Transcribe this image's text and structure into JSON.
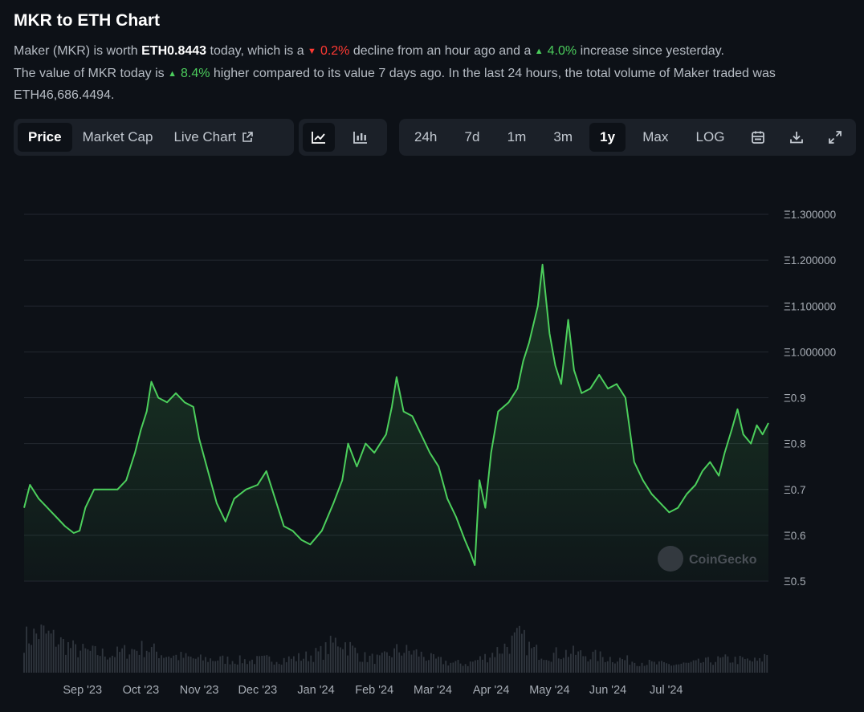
{
  "header": {
    "title": "MKR to ETH Chart",
    "line1_a": "Maker (MKR) is worth ",
    "price": "ETH0.8443",
    "line1_b": " today, which is a ",
    "hour_change": "0.2%",
    "line1_c": " decline from an hour ago and a ",
    "day_change": "4.0%",
    "line1_d": " increase since yesterday.",
    "line2_a": "The value of MKR today is ",
    "week_change": "8.4%",
    "line2_b": " higher compared to its value 7 days ago. In the last 24 hours, the total volume of Maker traded was ETH46,686.4494."
  },
  "toolbar": {
    "view_tabs": {
      "price": "Price",
      "market_cap": "Market Cap",
      "live_chart": "Live Chart"
    },
    "chart_types": [
      "line-chart-icon",
      "candlestick-chart-icon"
    ],
    "ranges": {
      "h24": "24h",
      "d7": "7d",
      "m1": "1m",
      "m3": "3m",
      "y1": "1y",
      "max": "Max",
      "log": "LOG"
    },
    "active_view": "Price",
    "active_chart_type": "line",
    "active_range": "1y",
    "tools": [
      "calendar-icon",
      "download-icon",
      "expand-icon"
    ]
  },
  "chart_data": {
    "type": "area",
    "title": "",
    "xlabel": "",
    "ylabel": "",
    "x_labels": [
      "Sep '23",
      "Oct '23",
      "Nov '23",
      "Dec '23",
      "Jan '24",
      "Feb '24",
      "Mar '24",
      "Apr '24",
      "May '24",
      "Jun '24",
      "Jul '24"
    ],
    "x_label_months": [
      1,
      2,
      3,
      4,
      5,
      6,
      7,
      8,
      9,
      10,
      11
    ],
    "y_ticks": [
      {
        "value": 0.5,
        "label": "Ξ0.5"
      },
      {
        "value": 0.6,
        "label": "Ξ0.6"
      },
      {
        "value": 0.7,
        "label": "Ξ0.7"
      },
      {
        "value": 0.8,
        "label": "Ξ0.8"
      },
      {
        "value": 0.9,
        "label": "Ξ0.9"
      },
      {
        "value": 1.0,
        "label": "Ξ1.000000"
      },
      {
        "value": 1.1,
        "label": "Ξ1.100000"
      },
      {
        "value": 1.2,
        "label": "Ξ1.200000"
      },
      {
        "value": 1.3,
        "label": "Ξ1.300000"
      }
    ],
    "ylim": [
      0.5,
      1.3
    ],
    "grid": true,
    "line_color": "#4ccf5c",
    "watermark": "CoinGecko",
    "price_series": {
      "name": "MKR/ETH",
      "points": [
        [
          0.0,
          0.66
        ],
        [
          0.1,
          0.71
        ],
        [
          0.25,
          0.68
        ],
        [
          0.4,
          0.66
        ],
        [
          0.55,
          0.64
        ],
        [
          0.7,
          0.62
        ],
        [
          0.85,
          0.605
        ],
        [
          0.95,
          0.61
        ],
        [
          1.05,
          0.66
        ],
        [
          1.2,
          0.7
        ],
        [
          1.4,
          0.7
        ],
        [
          1.6,
          0.7
        ],
        [
          1.75,
          0.72
        ],
        [
          1.9,
          0.78
        ],
        [
          2.0,
          0.83
        ],
        [
          2.1,
          0.87
        ],
        [
          2.18,
          0.935
        ],
        [
          2.3,
          0.9
        ],
        [
          2.45,
          0.89
        ],
        [
          2.6,
          0.91
        ],
        [
          2.75,
          0.89
        ],
        [
          2.9,
          0.88
        ],
        [
          3.0,
          0.81
        ],
        [
          3.15,
          0.74
        ],
        [
          3.3,
          0.67
        ],
        [
          3.45,
          0.63
        ],
        [
          3.6,
          0.68
        ],
        [
          3.8,
          0.7
        ],
        [
          4.0,
          0.71
        ],
        [
          4.15,
          0.74
        ],
        [
          4.3,
          0.68
        ],
        [
          4.45,
          0.62
        ],
        [
          4.6,
          0.61
        ],
        [
          4.75,
          0.59
        ],
        [
          4.9,
          0.58
        ],
        [
          5.1,
          0.61
        ],
        [
          5.3,
          0.67
        ],
        [
          5.45,
          0.72
        ],
        [
          5.55,
          0.8
        ],
        [
          5.7,
          0.75
        ],
        [
          5.85,
          0.8
        ],
        [
          6.0,
          0.78
        ],
        [
          6.1,
          0.8
        ],
        [
          6.2,
          0.82
        ],
        [
          6.3,
          0.88
        ],
        [
          6.38,
          0.945
        ],
        [
          6.5,
          0.87
        ],
        [
          6.65,
          0.86
        ],
        [
          6.8,
          0.82
        ],
        [
          6.95,
          0.78
        ],
        [
          7.1,
          0.75
        ],
        [
          7.25,
          0.68
        ],
        [
          7.4,
          0.64
        ],
        [
          7.55,
          0.59
        ],
        [
          7.65,
          0.56
        ],
        [
          7.72,
          0.535
        ],
        [
          7.8,
          0.72
        ],
        [
          7.9,
          0.66
        ],
        [
          8.0,
          0.78
        ],
        [
          8.12,
          0.87
        ],
        [
          8.3,
          0.89
        ],
        [
          8.45,
          0.92
        ],
        [
          8.55,
          0.98
        ],
        [
          8.65,
          1.02
        ],
        [
          8.8,
          1.1
        ],
        [
          8.88,
          1.19
        ],
        [
          9.0,
          1.04
        ],
        [
          9.1,
          0.97
        ],
        [
          9.2,
          0.93
        ],
        [
          9.32,
          1.07
        ],
        [
          9.42,
          0.96
        ],
        [
          9.55,
          0.91
        ],
        [
          9.7,
          0.92
        ],
        [
          9.85,
          0.95
        ],
        [
          10.0,
          0.92
        ],
        [
          10.15,
          0.93
        ],
        [
          10.3,
          0.9
        ],
        [
          10.45,
          0.76
        ],
        [
          10.6,
          0.72
        ],
        [
          10.75,
          0.69
        ],
        [
          10.9,
          0.67
        ],
        [
          11.05,
          0.65
        ],
        [
          11.2,
          0.66
        ],
        [
          11.35,
          0.69
        ],
        [
          11.5,
          0.71
        ],
        [
          11.62,
          0.74
        ],
        [
          11.75,
          0.76
        ],
        [
          11.9,
          0.73
        ],
        [
          12.0,
          0.78
        ],
        [
          12.12,
          0.83
        ],
        [
          12.22,
          0.875
        ],
        [
          12.32,
          0.82
        ],
        [
          12.45,
          0.8
        ],
        [
          12.55,
          0.84
        ],
        [
          12.65,
          0.82
        ],
        [
          12.75,
          0.845
        ]
      ]
    },
    "volume_series": {
      "name": "Volume",
      "points": [
        [
          0.0,
          0.75
        ],
        [
          0.3,
          0.9
        ],
        [
          0.6,
          0.7
        ],
        [
          0.9,
          0.5
        ],
        [
          1.2,
          0.45
        ],
        [
          1.5,
          0.4
        ],
        [
          1.8,
          0.5
        ],
        [
          2.1,
          0.55
        ],
        [
          2.4,
          0.4
        ],
        [
          2.7,
          0.35
        ],
        [
          3.0,
          0.3
        ],
        [
          3.3,
          0.3
        ],
        [
          3.6,
          0.28
        ],
        [
          3.9,
          0.27
        ],
        [
          4.2,
          0.3
        ],
        [
          4.5,
          0.3
        ],
        [
          4.8,
          0.35
        ],
        [
          5.1,
          0.45
        ],
        [
          5.4,
          0.75
        ],
        [
          5.6,
          0.55
        ],
        [
          5.8,
          0.35
        ],
        [
          6.1,
          0.3
        ],
        [
          6.4,
          0.5
        ],
        [
          6.7,
          0.45
        ],
        [
          7.0,
          0.3
        ],
        [
          7.3,
          0.22
        ],
        [
          7.6,
          0.2
        ],
        [
          7.9,
          0.35
        ],
        [
          8.2,
          0.55
        ],
        [
          8.5,
          0.8
        ],
        [
          8.7,
          0.5
        ],
        [
          9.0,
          0.4
        ],
        [
          9.3,
          0.45
        ],
        [
          9.6,
          0.4
        ],
        [
          9.9,
          0.35
        ],
        [
          10.2,
          0.3
        ],
        [
          10.5,
          0.25
        ],
        [
          10.8,
          0.2
        ],
        [
          11.1,
          0.18
        ],
        [
          11.4,
          0.2
        ],
        [
          11.7,
          0.25
        ],
        [
          12.0,
          0.3
        ],
        [
          12.3,
          0.28
        ],
        [
          12.6,
          0.25
        ],
        [
          12.75,
          0.45
        ]
      ]
    }
  }
}
